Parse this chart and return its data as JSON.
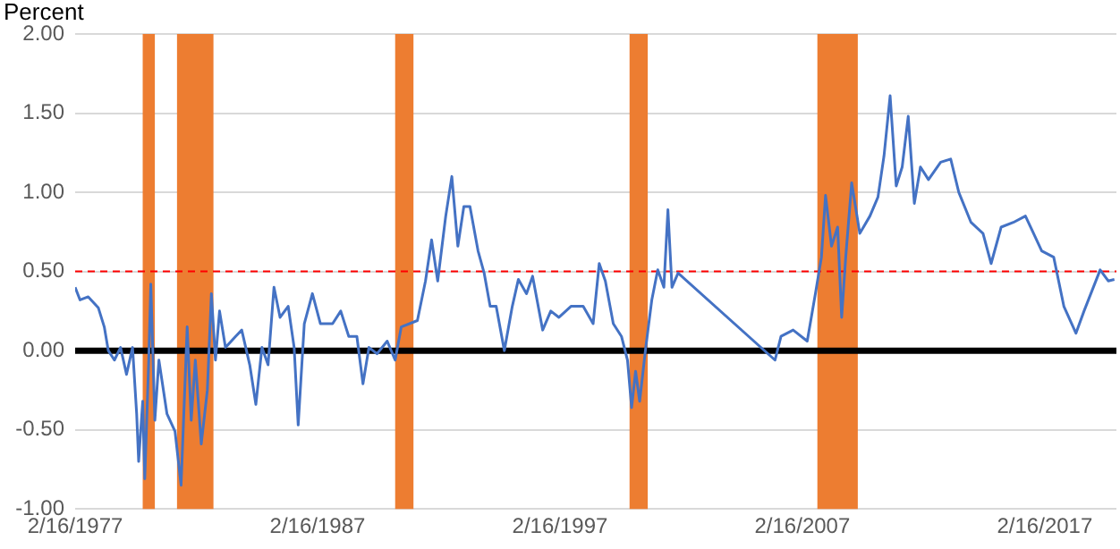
{
  "chart_data": {
    "type": "line",
    "ylabel": "Percent",
    "xlim": [
      "1977-02-16",
      "2020-02-01"
    ],
    "xticks": [
      {
        "value": "1977-02-16",
        "label": "2/16/1977"
      },
      {
        "value": "1987-02-16",
        "label": "2/16/1987"
      },
      {
        "value": "1997-02-16",
        "label": "2/16/1997"
      },
      {
        "value": "2007-02-16",
        "label": "2/16/2007"
      },
      {
        "value": "2017-02-16",
        "label": "2/16/2017"
      }
    ],
    "ylim": [
      -1,
      2
    ],
    "yticks": [
      {
        "value": -1,
        "label": "-1.00"
      },
      {
        "value": -0.5,
        "label": "-0.50"
      },
      {
        "value": 0,
        "label": "0.00"
      },
      {
        "value": 0.5,
        "label": "0.50"
      },
      {
        "value": 1,
        "label": "1.00"
      },
      {
        "value": 1.5,
        "label": "1.50"
      },
      {
        "value": 2,
        "label": "2.00"
      }
    ],
    "grid": "y",
    "legend": false,
    "marker": "none",
    "line_style": "solid",
    "series": [
      {
        "color": "#4472c4",
        "x": [
          "1977-02-16",
          "1977-05",
          "1977-09",
          "1978-02",
          "1978-05",
          "1978-07",
          "1978-10",
          "1979-01",
          "1979-04",
          "1979-07",
          "1979-09",
          "1979-10",
          "1979-12",
          "1980-01",
          "1980-03",
          "1980-04",
          "1980-06",
          "1980-08",
          "1980-12",
          "1981-04",
          "1981-07",
          "1981-10",
          "1981-12",
          "1982-02",
          "1982-05",
          "1982-08",
          "1982-10",
          "1982-12",
          "1983-02",
          "1983-05",
          "1983-10",
          "1984-01",
          "1984-05",
          "1984-08",
          "1984-11",
          "1985-02",
          "1985-05",
          "1985-08",
          "1985-12",
          "1986-03",
          "1986-05",
          "1986-08",
          "1986-12",
          "1987-04",
          "1987-10",
          "1988-02",
          "1988-06",
          "1988-10",
          "1989-01",
          "1989-04",
          "1989-08",
          "1990-01",
          "1990-05",
          "1990-08",
          "1991-04",
          "1991-08",
          "1991-11",
          "1992-02",
          "1992-06",
          "1992-09",
          "1992-12",
          "1993-03",
          "1993-06",
          "1993-10",
          "1994-01",
          "1994-04",
          "1994-07",
          "1994-11",
          "1995-03",
          "1995-06",
          "1995-10",
          "1996-01",
          "1996-06",
          "1996-10",
          "1997-02",
          "1997-08",
          "1998-02",
          "1998-07",
          "1998-10",
          "1999-01",
          "1999-05",
          "1999-09",
          "1999-12",
          "2000-02",
          "2000-04",
          "2000-06",
          "2000-09",
          "2000-12",
          "2001-03",
          "2001-06",
          "2001-08",
          "2001-10",
          "2002-01",
          "2006-01",
          "2006-04",
          "2006-10",
          "2007-05",
          "2007-09",
          "2007-12",
          "2008-02",
          "2008-05",
          "2008-08",
          "2008-10",
          "2008-12",
          "2009-03",
          "2009-07",
          "2009-12",
          "2010-04",
          "2010-07",
          "2010-10",
          "2011-01",
          "2011-04",
          "2011-07",
          "2011-10",
          "2012-01",
          "2012-05",
          "2012-11",
          "2013-04",
          "2013-08",
          "2014-02",
          "2014-08",
          "2014-12",
          "2015-05",
          "2015-11",
          "2016-05",
          "2016-09",
          "2017-01",
          "2017-07",
          "2017-12",
          "2018-06",
          "2018-10",
          "2019-06",
          "2019-10",
          "2020-01"
        ],
        "values": [
          0.4,
          0.32,
          0.34,
          0.27,
          0.15,
          0,
          -0.06,
          0.02,
          -0.15,
          0.02,
          -0.4,
          -0.7,
          -0.32,
          -0.81,
          -0.06,
          0.42,
          -0.44,
          -0.06,
          -0.4,
          -0.51,
          -0.85,
          0.15,
          -0.44,
          -0.06,
          -0.59,
          -0.25,
          0.36,
          -0.06,
          0.25,
          0.02,
          0.09,
          0.13,
          -0.09,
          -0.34,
          0.02,
          -0.09,
          0.4,
          0.21,
          0.28,
          0.02,
          -0.47,
          0.17,
          0.36,
          0.17,
          0.17,
          0.25,
          0.09,
          0.09,
          -0.21,
          0.02,
          -0.02,
          0.06,
          -0.06,
          0.15,
          0.19,
          0.44,
          0.7,
          0.44,
          0.85,
          1.1,
          0.66,
          0.91,
          0.91,
          0.63,
          0.49,
          0.28,
          0.28,
          0.0,
          0.28,
          0.45,
          0.36,
          0.47,
          0.13,
          0.25,
          0.21,
          0.28,
          0.28,
          0.17,
          0.55,
          0.44,
          0.17,
          0.09,
          -0.06,
          -0.36,
          -0.13,
          -0.32,
          0.02,
          0.32,
          0.51,
          0.4,
          0.89,
          0.4,
          0.49,
          -0.06,
          0.09,
          0.13,
          0.06,
          0.36,
          0.59,
          0.98,
          0.66,
          0.78,
          0.21,
          0.59,
          1.06,
          0.74,
          0.85,
          0.97,
          1.23,
          1.61,
          1.04,
          1.16,
          1.48,
          0.93,
          1.16,
          1.08,
          1.19,
          1.21,
          1.0,
          0.81,
          0.74,
          0.55,
          0.78,
          0.81,
          0.85,
          0.74,
          0.63,
          0.59,
          0.28,
          0.11,
          0.25,
          0.51,
          0.44,
          0.45
        ]
      }
    ],
    "ref_lines": [
      {
        "axis": "y",
        "value": 0,
        "color": "#000000",
        "line_style": "solid"
      },
      {
        "axis": "y",
        "value": 0.5,
        "color": "#ff0000",
        "line_style": "dashed"
      }
    ],
    "bands": [
      {
        "axis": "x",
        "from": "1979-12",
        "to": "1980-06",
        "color": "#ed7d31"
      },
      {
        "axis": "x",
        "from": "1981-05",
        "to": "1982-11",
        "color": "#ed7d31"
      },
      {
        "axis": "x",
        "from": "1990-05",
        "to": "1991-02",
        "color": "#ed7d31"
      },
      {
        "axis": "x",
        "from": "2000-01",
        "to": "2000-10",
        "color": "#ed7d31"
      },
      {
        "axis": "x",
        "from": "2007-10",
        "to": "2009-06",
        "color": "#ed7d31"
      }
    ]
  }
}
